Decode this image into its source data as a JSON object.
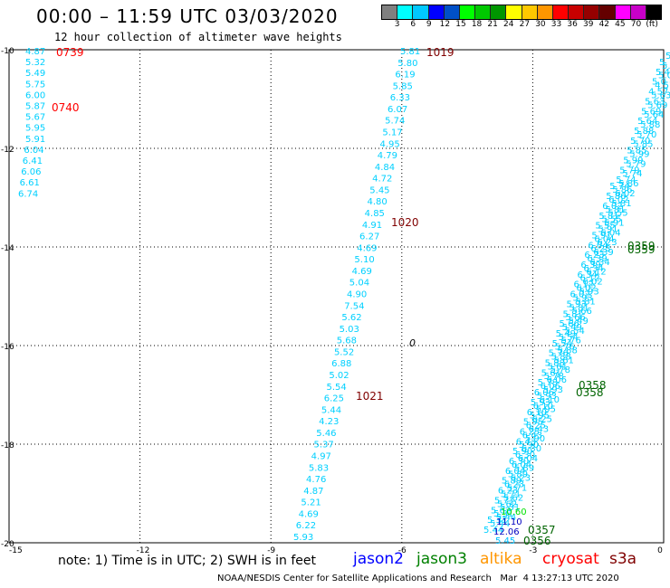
{
  "title": "00:00 – 11:59 UTC 03/03/2020",
  "subtitle": "12 hour collection of altimeter wave heights",
  "colorbar": {
    "colors": [
      "#808080",
      "#00ffff",
      "#00c8ff",
      "#0000ff",
      "#0050c8",
      "#00ff00",
      "#00c800",
      "#009600",
      "#ffff00",
      "#ffc800",
      "#ff9600",
      "#ff0000",
      "#c80000",
      "#960000",
      "#640000",
      "#ff00ff",
      "#c800c8",
      "#000000"
    ],
    "labels": [
      "3",
      "6",
      "9",
      "12",
      "15",
      "18",
      "21",
      "24",
      "27",
      "30",
      "33",
      "36",
      "39",
      "42",
      "45",
      "70",
      "(ft)"
    ]
  },
  "axes": {
    "x_ticks": [
      "-15",
      "-12",
      "-9",
      "-6",
      "-3",
      "0"
    ],
    "y_ticks": [
      "-10",
      "-12",
      "-14",
      "-16",
      "-18",
      "-20"
    ],
    "grid": true
  },
  "tracks": {
    "west": {
      "color": "#00d0ff",
      "values": [
        "4.87",
        "5.32",
        "5.49",
        "5.75",
        "6.00",
        "5.87",
        "5.67",
        "5.95",
        "5.91",
        "6.04",
        "6.41",
        "6.06",
        "6.61",
        "6.74"
      ],
      "times": [
        {
          "text": "0739",
          "color": "#ff0000"
        },
        {
          "text": "0740",
          "color": "#ff0000"
        }
      ]
    },
    "middle": {
      "color": "#00d0ff",
      "values": [
        "5.81",
        "5.80",
        "6.19",
        "5.85",
        "6.33",
        "6.07",
        "5.74",
        "5.17",
        "4.95",
        "4.79",
        "4.84",
        "4.72",
        "5.45",
        "4.80",
        "4.85",
        "4.91",
        "6.27",
        "4.69",
        "5.10",
        "4.69",
        "5.04",
        "4.90",
        "7.54",
        "5.62",
        "5.03",
        "5.68",
        "5.52",
        "6.88",
        "5.02",
        "5.54",
        "6.25",
        "5.44",
        "4.23",
        "5.46",
        "5.37",
        "4.97",
        "5.83",
        "4.76",
        "4.87",
        "5.21",
        "4.69",
        "6.22",
        "5.93"
      ],
      "times": [
        {
          "text": "1019",
          "color": "#800000"
        },
        {
          "text": "1020",
          "color": "#800000"
        },
        {
          "text": "1021",
          "color": "#800000"
        }
      ]
    },
    "east": {
      "color": "#00d0ff",
      "values": [
        "5.",
        "5.4",
        "5.0",
        "4.57",
        "5.63",
        "5.69",
        "5.64",
        "5.88",
        "5.70",
        "5.85",
        "5.99",
        "5.79",
        "5.74",
        "5.86",
        "6.02",
        "5.81",
        "5.55",
        "5.91",
        "6.04",
        "6.23",
        "6.39",
        "6.34",
        "6.12",
        "6.02",
        "5.93",
        "5.81",
        "5.66",
        "5.49",
        "5.54",
        "5.76",
        "5.88",
        "5.61",
        "5.78",
        "6.06",
        "5.93",
        "6.10",
        "5.95",
        "6.25",
        "6.43",
        "5.90",
        "6.30",
        "6.04",
        "5.89",
        "6.23",
        "5.71",
        "5.62",
        "5.31",
        "5.44"
      ],
      "end_labels": [
        {
          "text": "11.10",
          "color": "#0000c0"
        },
        {
          "text": "12.06",
          "color": "#0000c0"
        },
        {
          "text": "5.45",
          "color": "#00c0ff"
        },
        {
          "text": "10.60",
          "color": "#00e000"
        }
      ],
      "times": [
        {
          "text": "0359",
          "color": "#006400"
        },
        {
          "text": "0359",
          "color": "#006400"
        },
        {
          "text": "0358",
          "color": "#006400"
        },
        {
          "text": "0358",
          "color": "#006400"
        },
        {
          "text": "0357",
          "color": "#006400"
        },
        {
          "text": "0356",
          "color": "#006400"
        }
      ]
    }
  },
  "marker": "0",
  "note": "note: 1) Time is in UTC; 2) SWH is in feet",
  "satellites": [
    {
      "name": "jason2",
      "color": "#0000ff"
    },
    {
      "name": "jason3",
      "color": "#008000"
    },
    {
      "name": "altika",
      "color": "#ff9600"
    },
    {
      "name": "cryosat",
      "color": "#ff0000"
    },
    {
      "name": "s3a",
      "color": "#800000"
    }
  ],
  "credit": "NOAA/NESDIS Center for Satellite Applications and Research   Mar  4 13:27:13 UTC 2020"
}
